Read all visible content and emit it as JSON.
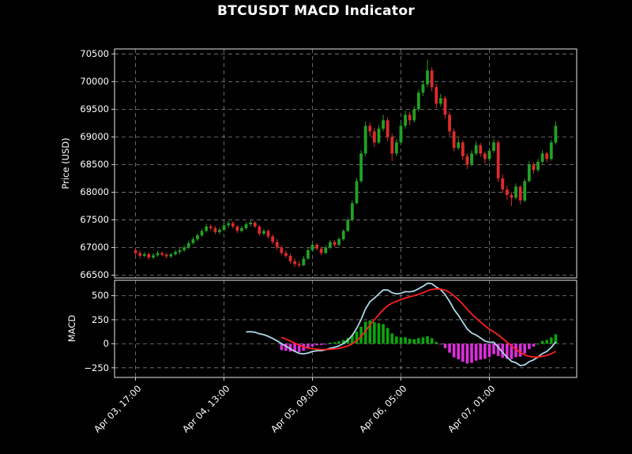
{
  "chart_data": {
    "type": "candlestick+macd",
    "title": "BTCUSDT MACD Indicator",
    "bg_color": "#000000",
    "text_color": "#ffffff",
    "grid_color": "rgba(255,255,255,0.5)",
    "spine_color": "#e8e8e8",
    "x": {
      "start_label": "Apr 03, 17:00",
      "interval_hours": 1,
      "tick_hours": [
        0,
        20,
        40,
        60,
        80
      ],
      "tick_labels": [
        "Apr 03, 17:00",
        "Apr 04, 13:00",
        "Apr 05, 09:00",
        "Apr 06, 05:00",
        "Apr 07, 01:00"
      ],
      "xlim_hours": [
        -4.75,
        99.75
      ]
    },
    "price_panel": {
      "ylabel": "Price (USD)",
      "ylim": [
        66450,
        70590
      ],
      "yticks": [
        66500,
        67000,
        67500,
        68000,
        68500,
        69000,
        69500,
        70000,
        70500
      ],
      "up_color": "#23a123",
      "down_color": "#de2b2b",
      "candles_ohlc": [
        [
          66950,
          67000,
          66850,
          66900
        ],
        [
          66900,
          66950,
          66800,
          66850
        ],
        [
          66850,
          66920,
          66820,
          66880
        ],
        [
          66880,
          66910,
          66780,
          66820
        ],
        [
          66820,
          66900,
          66790,
          66860
        ],
        [
          66860,
          66940,
          66830,
          66900
        ],
        [
          66900,
          66930,
          66840,
          66870
        ],
        [
          66870,
          66910,
          66800,
          66840
        ],
        [
          66840,
          66900,
          66810,
          66880
        ],
        [
          66880,
          66960,
          66850,
          66920
        ],
        [
          66920,
          66990,
          66880,
          66950
        ],
        [
          66950,
          67040,
          66920,
          67000
        ],
        [
          67000,
          67120,
          66970,
          67080
        ],
        [
          67080,
          67190,
          67050,
          67150
        ],
        [
          67150,
          67260,
          67110,
          67220
        ],
        [
          67220,
          67340,
          67190,
          67300
        ],
        [
          67300,
          67430,
          67270,
          67380
        ],
        [
          67380,
          67420,
          67310,
          67350
        ],
        [
          67350,
          67390,
          67240,
          67280
        ],
        [
          67280,
          67360,
          67240,
          67320
        ],
        [
          67320,
          67450,
          67290,
          67400
        ],
        [
          67400,
          67480,
          67360,
          67440
        ],
        [
          67440,
          67470,
          67340,
          67380
        ],
        [
          67380,
          67410,
          67260,
          67300
        ],
        [
          67300,
          67390,
          67270,
          67350
        ],
        [
          67350,
          67460,
          67320,
          67420
        ],
        [
          67420,
          67490,
          67380,
          67450
        ],
        [
          67450,
          67480,
          67350,
          67380
        ],
        [
          67380,
          67400,
          67210,
          67250
        ],
        [
          67250,
          67340,
          67220,
          67300
        ],
        [
          67300,
          67330,
          67160,
          67200
        ],
        [
          67200,
          67240,
          67060,
          67100
        ],
        [
          67100,
          67150,
          66960,
          67000
        ],
        [
          67000,
          67040,
          66860,
          66900
        ],
        [
          66900,
          66950,
          66810,
          66850
        ],
        [
          66850,
          66890,
          66710,
          66750
        ],
        [
          66750,
          66800,
          66650,
          66700
        ],
        [
          66700,
          66760,
          66640,
          66680
        ],
        [
          66680,
          66850,
          66660,
          66800
        ],
        [
          66800,
          66990,
          66780,
          66950
        ],
        [
          66950,
          67090,
          66920,
          67050
        ],
        [
          67050,
          67080,
          66950,
          66980
        ],
        [
          66980,
          67020,
          66860,
          66900
        ],
        [
          66900,
          67040,
          66880,
          67000
        ],
        [
          67000,
          67140,
          66970,
          67100
        ],
        [
          67100,
          67130,
          67010,
          67050
        ],
        [
          67050,
          67190,
          67020,
          67150
        ],
        [
          67150,
          67330,
          67120,
          67300
        ],
        [
          67300,
          67540,
          67280,
          67500
        ],
        [
          67500,
          67850,
          67470,
          67800
        ],
        [
          67800,
          68260,
          67780,
          68200
        ],
        [
          68200,
          68760,
          68170,
          68700
        ],
        [
          68700,
          69280,
          68650,
          69200
        ],
        [
          69200,
          69260,
          69010,
          69100
        ],
        [
          69100,
          69160,
          68820,
          68900
        ],
        [
          68900,
          69210,
          68870,
          69150
        ],
        [
          69150,
          69400,
          69100,
          69300
        ],
        [
          69300,
          69350,
          68930,
          69000
        ],
        [
          69000,
          69060,
          68560,
          68700
        ],
        [
          68700,
          68960,
          68650,
          68900
        ],
        [
          68900,
          69260,
          68860,
          69200
        ],
        [
          69200,
          69480,
          69150,
          69400
        ],
        [
          69400,
          69450,
          69220,
          69300
        ],
        [
          69300,
          69560,
          69260,
          69500
        ],
        [
          69500,
          69850,
          69460,
          69800
        ],
        [
          69800,
          70020,
          69740,
          69950
        ],
        [
          69950,
          70400,
          69900,
          70200
        ],
        [
          70200,
          70260,
          69820,
          69900
        ],
        [
          69900,
          69960,
          69520,
          69600
        ],
        [
          69600,
          69780,
          69550,
          69700
        ],
        [
          69700,
          69740,
          69330,
          69400
        ],
        [
          69400,
          69460,
          69020,
          69100
        ],
        [
          69100,
          69150,
          68740,
          68800
        ],
        [
          68800,
          68980,
          68760,
          68900
        ],
        [
          68900,
          68940,
          68580,
          68650
        ],
        [
          68650,
          68700,
          68420,
          68500
        ],
        [
          68500,
          68760,
          68470,
          68700
        ],
        [
          68700,
          68920,
          68660,
          68850
        ],
        [
          68850,
          68890,
          68640,
          68700
        ],
        [
          68700,
          68740,
          68520,
          68600
        ],
        [
          68600,
          68800,
          68560,
          68750
        ],
        [
          68750,
          68970,
          68710,
          68900
        ],
        [
          68900,
          68940,
          68180,
          68250
        ],
        [
          68250,
          68320,
          67990,
          68050
        ],
        [
          68050,
          68120,
          67860,
          67950
        ],
        [
          67950,
          68000,
          67750,
          67900
        ],
        [
          67900,
          68160,
          67870,
          68100
        ],
        [
          68100,
          68130,
          67780,
          67850
        ],
        [
          67850,
          68240,
          67820,
          68200
        ],
        [
          68200,
          68560,
          68180,
          68500
        ],
        [
          68500,
          68540,
          68330,
          68400
        ],
        [
          68400,
          68600,
          68360,
          68550
        ],
        [
          68550,
          68760,
          68510,
          68700
        ],
        [
          68700,
          68730,
          68540,
          68600
        ],
        [
          68600,
          68950,
          68570,
          68900
        ],
        [
          68900,
          69280,
          68860,
          69200
        ]
      ]
    },
    "macd_panel": {
      "ylabel": "MACD",
      "ylim": [
        -350,
        660
      ],
      "yticks": [
        -250,
        0,
        250,
        500
      ],
      "params": {
        "fast": 12,
        "slow": 26,
        "signal": 9
      },
      "macd_color": "#add8e6",
      "signal_color": "#ff1f1f",
      "hist_pos_color": "#0aa60a",
      "hist_neg_color": "#df2cdf"
    }
  }
}
